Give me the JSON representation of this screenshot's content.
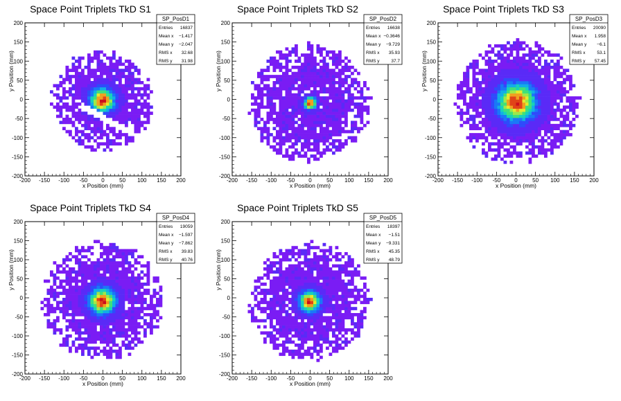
{
  "canvas": {
    "background": "#ffffff",
    "frame_color": "#000000"
  },
  "palette": [
    "#7a1cf4",
    "#5a2af7",
    "#2f4bfb",
    "#1a78f7",
    "#12aee6",
    "#18d2b8",
    "#40e07a",
    "#9ee84a",
    "#e6ea2c",
    "#f0a020",
    "#e04418",
    "#cc0f1c"
  ],
  "chart_data": [
    {
      "type": "heatmap",
      "title": "Space Point Triplets TkD S1",
      "xlabel": "x Position (mm)",
      "ylabel": "y Position (mm)",
      "xlim": [
        -200,
        200
      ],
      "ylim": [
        -200,
        200
      ],
      "xticks": [
        -200,
        -150,
        -100,
        -50,
        0,
        50,
        100,
        150,
        200
      ],
      "yticks": [
        -200,
        -150,
        -100,
        -50,
        0,
        50,
        100,
        150,
        200
      ],
      "grid": false,
      "stats_box": {
        "name": "SP_PosD1",
        "rows": [
          {
            "label": "Entries",
            "value": "16837"
          },
          {
            "label": "Mean x",
            "value": "−1.417"
          },
          {
            "label": "Mean y",
            "value": "−2.047"
          },
          {
            "label": "RMS x",
            "value": "32.68"
          },
          {
            "label": "RMS y",
            "value": "31.98"
          }
        ]
      },
      "distribution": {
        "center_x": -1.4,
        "center_y": -2.0,
        "core_radius": 35,
        "halo_radius": 125,
        "peak_level": 11,
        "gap_band": true
      }
    },
    {
      "type": "heatmap",
      "title": "Space Point Triplets TkD S2",
      "xlabel": "x Position (mm)",
      "ylabel": "y Position (mm)",
      "xlim": [
        -200,
        200
      ],
      "ylim": [
        -200,
        200
      ],
      "xticks": [
        -200,
        -150,
        -100,
        -50,
        0,
        50,
        100,
        150,
        200
      ],
      "yticks": [
        -200,
        -150,
        -100,
        -50,
        0,
        50,
        100,
        150,
        200
      ],
      "grid": false,
      "stats_box": {
        "name": "SP_PosD2",
        "rows": [
          {
            "label": "Entries",
            "value": "16638"
          },
          {
            "label": "Mean x",
            "value": "−0.3646"
          },
          {
            "label": "Mean y",
            "value": "−9.729"
          },
          {
            "label": "RMS x",
            "value": "35.93"
          },
          {
            "label": "RMS y",
            "value": "37.7"
          }
        ]
      },
      "distribution": {
        "center_x": -0.4,
        "center_y": -9.7,
        "core_radius": 18,
        "halo_radius": 150,
        "peak_level": 11,
        "gap_band": false
      }
    },
    {
      "type": "heatmap",
      "title": "Space Point Triplets TkD S3",
      "xlabel": "x Position (mm)",
      "ylabel": "y Position (mm)",
      "xlim": [
        -200,
        200
      ],
      "ylim": [
        -200,
        200
      ],
      "xticks": [
        -200,
        -150,
        -100,
        -50,
        0,
        50,
        100,
        150,
        200
      ],
      "yticks": [
        -200,
        -150,
        -100,
        -50,
        0,
        50,
        100,
        150,
        200
      ],
      "grid": false,
      "stats_box": {
        "name": "SP_PosD3",
        "rows": [
          {
            "label": "Entries",
            "value": "20090"
          },
          {
            "label": "Mean x",
            "value": "1.958"
          },
          {
            "label": "Mean y",
            "value": "−6.1"
          },
          {
            "label": "RMS x",
            "value": "53.1"
          },
          {
            "label": "RMS y",
            "value": "57.45"
          }
        ]
      },
      "distribution": {
        "center_x": 2.0,
        "center_y": -6.1,
        "core_radius": 55,
        "halo_radius": 155,
        "peak_level": 11,
        "gap_band": false
      }
    },
    {
      "type": "heatmap",
      "title": "Space Point Triplets TkD S4",
      "xlabel": "x Position (mm)",
      "ylabel": "y Position (mm)",
      "xlim": [
        -200,
        200
      ],
      "ylim": [
        -200,
        200
      ],
      "xticks": [
        -200,
        -150,
        -100,
        -50,
        0,
        50,
        100,
        150,
        200
      ],
      "yticks": [
        -200,
        -150,
        -100,
        -50,
        0,
        50,
        100,
        150,
        200
      ],
      "grid": false,
      "stats_box": {
        "name": "SP_PosD4",
        "rows": [
          {
            "label": "Entries",
            "value": "19059"
          },
          {
            "label": "Mean x",
            "value": "−1.597"
          },
          {
            "label": "Mean y",
            "value": "−7.862"
          },
          {
            "label": "RMS x",
            "value": "39.83"
          },
          {
            "label": "RMS y",
            "value": "40.76"
          }
        ]
      },
      "distribution": {
        "center_x": -1.6,
        "center_y": -7.9,
        "core_radius": 38,
        "halo_radius": 150,
        "peak_level": 11,
        "gap_band": false
      }
    },
    {
      "type": "heatmap",
      "title": "Space Point Triplets TkD S5",
      "xlabel": "x Position (mm)",
      "ylabel": "y Position (mm)",
      "xlim": [
        -200,
        200
      ],
      "ylim": [
        -200,
        200
      ],
      "xticks": [
        -200,
        -150,
        -100,
        -50,
        0,
        50,
        100,
        150,
        200
      ],
      "yticks": [
        -200,
        -150,
        -100,
        -50,
        0,
        50,
        100,
        150,
        200
      ],
      "grid": false,
      "stats_box": {
        "name": "SP_PosD5",
        "rows": [
          {
            "label": "Entries",
            "value": "18397"
          },
          {
            "label": "Mean x",
            "value": "−1.51"
          },
          {
            "label": "Mean y",
            "value": "−9.331"
          },
          {
            "label": "RMS x",
            "value": "45.35"
          },
          {
            "label": "RMS y",
            "value": "48.79"
          }
        ]
      },
      "distribution": {
        "center_x": -1.5,
        "center_y": -9.3,
        "core_radius": 30,
        "halo_radius": 150,
        "peak_level": 11,
        "gap_band": false
      }
    }
  ]
}
